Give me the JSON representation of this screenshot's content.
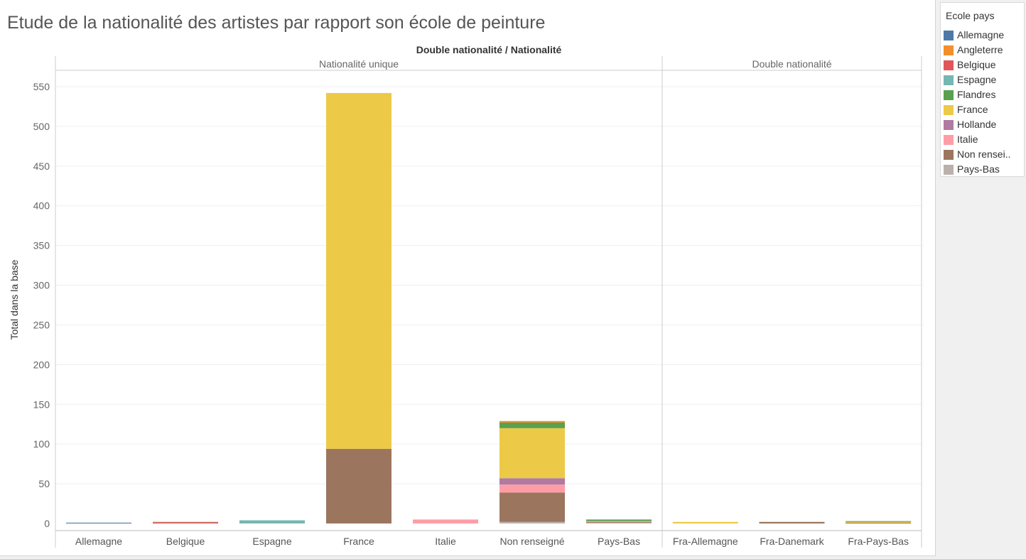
{
  "title": "Etude de la nationalité des artistes par rapport son école de peinture",
  "legend": {
    "title": "Ecole pays",
    "items": [
      {
        "label": "Allemagne",
        "color": "#4e79a7"
      },
      {
        "label": "Angleterre",
        "color": "#f28e2b"
      },
      {
        "label": "Belgique",
        "color": "#e15759"
      },
      {
        "label": "Espagne",
        "color": "#76b7b2"
      },
      {
        "label": "Flandres",
        "color": "#59a14f"
      },
      {
        "label": "France",
        "color": "#edc948"
      },
      {
        "label": "Hollande",
        "color": "#b07aa1"
      },
      {
        "label": "Italie",
        "color": "#ff9da7"
      },
      {
        "label": "Non rensei..",
        "color": "#9c755f"
      },
      {
        "label": "Pays-Bas",
        "color": "#bab0ac"
      }
    ]
  },
  "chart_data": {
    "type": "bar",
    "stacked": true,
    "title": "Etude de la nationalité des artistes par rapport son école de peinture",
    "column_header": "Double nationalité  /  Nationalité",
    "ylabel": "Total dans la base",
    "ylim": [
      0,
      560
    ],
    "yticks": [
      0,
      50,
      100,
      150,
      200,
      250,
      300,
      350,
      400,
      450,
      500,
      550
    ],
    "grid": true,
    "legend_position": "right",
    "panes": [
      {
        "label": "Nationalité unique",
        "categories": [
          "Allemagne",
          "Belgique",
          "Espagne",
          "France",
          "Italie",
          "Non renseigné",
          "Pays-Bas"
        ]
      },
      {
        "label": "Double nationalité",
        "categories": [
          "Fra-Allemagne",
          "Fra-Danemark",
          "Fra-Pays-Bas"
        ]
      }
    ],
    "categories": [
      "Allemagne",
      "Belgique",
      "Espagne",
      "France",
      "Italie",
      "Non renseigné",
      "Pays-Bas",
      "Fra-Allemagne",
      "Fra-Danemark",
      "Fra-Pays-Bas"
    ],
    "stack_order": [
      "Pays-Bas",
      "Non renseigné",
      "Italie",
      "Hollande",
      "France",
      "Flandres",
      "Espagne",
      "Belgique",
      "Angleterre",
      "Allemagne"
    ],
    "series": [
      {
        "name": "Allemagne",
        "values": [
          1,
          0,
          0,
          0,
          0,
          0,
          0,
          0,
          0,
          0
        ]
      },
      {
        "name": "Angleterre",
        "values": [
          0,
          0,
          0,
          0,
          0,
          2,
          0,
          0,
          0,
          0
        ]
      },
      {
        "name": "Belgique",
        "values": [
          0,
          1,
          0,
          0,
          0,
          0,
          0,
          0,
          0,
          0
        ]
      },
      {
        "name": "Espagne",
        "values": [
          0,
          0,
          4,
          0,
          0,
          0,
          0,
          0,
          0,
          0
        ]
      },
      {
        "name": "Flandres",
        "values": [
          0,
          0,
          0,
          0,
          0,
          7,
          2,
          0,
          0,
          1
        ]
      },
      {
        "name": "France",
        "values": [
          0,
          0,
          0,
          448,
          0,
          63,
          0,
          2,
          0,
          1
        ]
      },
      {
        "name": "Hollande",
        "values": [
          0,
          0,
          0,
          0,
          0,
          8,
          0,
          0,
          0,
          0
        ]
      },
      {
        "name": "Italie",
        "values": [
          0,
          0,
          0,
          0,
          5,
          10,
          1,
          0,
          0,
          0
        ]
      },
      {
        "name": "Non renseigné",
        "values": [
          0,
          1,
          0,
          94,
          0,
          37,
          1,
          0,
          2,
          1
        ]
      },
      {
        "name": "Pays-Bas",
        "values": [
          0,
          0,
          0,
          0,
          0,
          2,
          1,
          0,
          0,
          0
        ]
      }
    ]
  }
}
